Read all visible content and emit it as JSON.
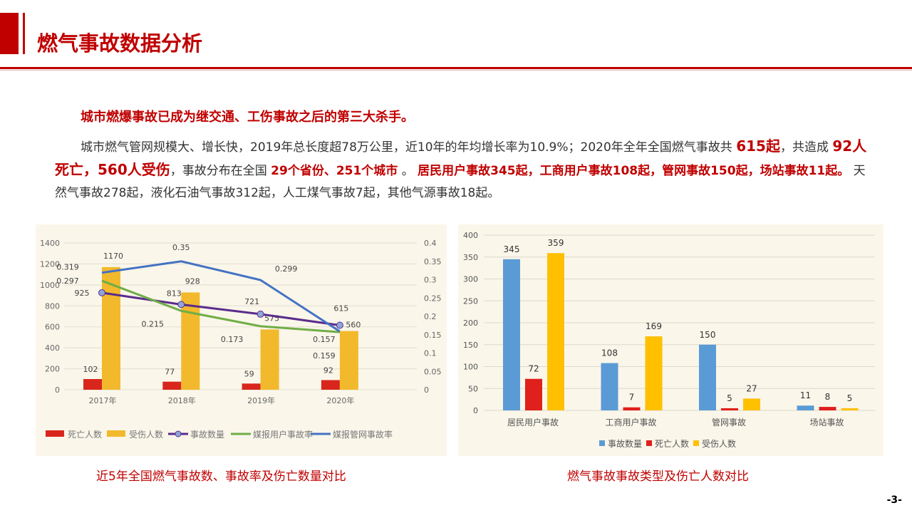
{
  "header": {
    "title": "燃气事故数据分析"
  },
  "subtitle": "城市燃爆事故已成为继交通、工伤事故之后的第三大杀手。",
  "paragraph": {
    "p1": "城市燃气管网规模大、增长快，2019年总长度超78万公里，近10年的年均增长率为10.9%；2020年全年全国燃气事故共 ",
    "h1": "615起",
    "p2": "，共造成 ",
    "h2": "92人死亡，560人受伤",
    "p3": "，事故分布在全国 ",
    "h3": "29个省份、251个城市",
    "p4": " 。 ",
    "h4": "居民用户事故345起，工商用户事故108起，管网事故150起，场站事故11起。",
    "p5": " 天然气事故278起，液化石油气事故312起，人工煤气事故7起，其他气源事故18起。"
  },
  "captions": {
    "left": "近5年全国燃气事故数、事故率及伤亡数量对比",
    "right": "燃气事故事故类型及伤亡人数对比"
  },
  "page_number": "-3-",
  "chart_data": [
    {
      "type": "bar",
      "title": "",
      "categories": [
        "2017年",
        "2018年",
        "2019年",
        "2020年"
      ],
      "ylim": [
        0,
        1400
      ],
      "yticks": [
        "0",
        "200",
        "400",
        "600",
        "800",
        "1000",
        "1200",
        "1400"
      ],
      "y2lim": [
        0,
        0.4
      ],
      "y2ticks": [
        "0",
        "0.05",
        "0.1",
        "0.15",
        "0.2",
        "0.25",
        "0.3",
        "0.35",
        "0.4"
      ],
      "series": [
        {
          "name": "死亡人数",
          "kind": "bar",
          "axis": "left",
          "color": "#d9261c",
          "values": [
            102,
            77,
            59,
            92
          ]
        },
        {
          "name": "受伤人数",
          "kind": "bar",
          "axis": "left",
          "color": "#f2b92c",
          "values": [
            1170,
            928,
            575,
            560
          ]
        },
        {
          "name": "事故数量",
          "kind": "line",
          "axis": "left",
          "color": "#5b2c8c",
          "values": [
            925,
            813,
            721,
            615
          ]
        },
        {
          "name": "媒报用户事故率",
          "kind": "line",
          "axis": "right",
          "color": "#70ad47",
          "values": [
            0.297,
            0.215,
            0.173,
            0.157
          ]
        },
        {
          "name": "媒报管网事故率",
          "kind": "line",
          "axis": "right",
          "color": "#4472c4",
          "values": [
            0.319,
            0.35,
            0.299,
            0.159
          ]
        }
      ],
      "legend": "bottom",
      "grid": true
    },
    {
      "type": "bar",
      "title": "",
      "categories": [
        "居民用户事故",
        "工商用户事故",
        "管网事故",
        "场站事故"
      ],
      "ylim": [
        0,
        400
      ],
      "yticks": [
        "0",
        "50",
        "100",
        "150",
        "200",
        "250",
        "300",
        "350",
        "400"
      ],
      "series": [
        {
          "name": "事故数量",
          "color": "#5b9bd5",
          "values": [
            345,
            108,
            150,
            11
          ]
        },
        {
          "name": "死亡人数",
          "color": "#e0201b",
          "values": [
            72,
            7,
            5,
            8
          ]
        },
        {
          "name": "受伤人数",
          "color": "#ffc000",
          "values": [
            359,
            169,
            27,
            5
          ]
        }
      ],
      "legend": "bottom",
      "grid": true
    }
  ]
}
